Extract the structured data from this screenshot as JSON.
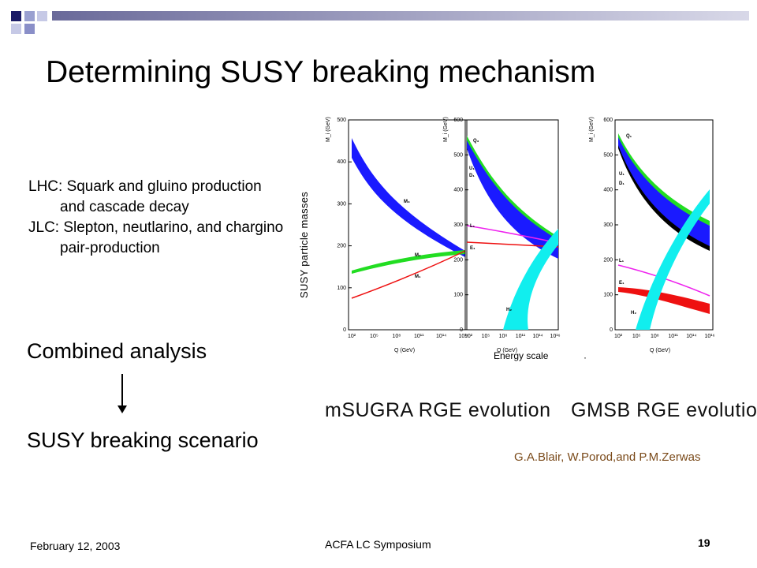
{
  "slide": {
    "title": "Determining SUSY breaking mechanism",
    "bullets": [
      "LHC:  Squark and gluino production and cascade decay",
      "JLC:  Slepton, neutlarino, and chargino pair-production"
    ],
    "combined": "Combined analysis",
    "scenario": "SUSY breaking scenario",
    "figure": {
      "ylabel": "SUSY particle masses",
      "xlabel": "Energy scale",
      "xlabel_mark": "·",
      "caption_left": "mSUGRA RGE evolution",
      "caption_right": "GMSB RGE evolution",
      "credit": "G.A.Blair, W.Porod,and P.M.Zerwas",
      "panel_axis_label": "M_i (GeV)",
      "panel_xaxis_label": "Q (GeV)",
      "panel1_yticks": [
        "0",
        "100",
        "200",
        "300",
        "400",
        "500"
      ],
      "panel23_yticks": [
        "0",
        "100",
        "200",
        "300",
        "400",
        "500",
        "600"
      ],
      "xticks": [
        "10²",
        "10⁵",
        "10⁸",
        "10¹¹",
        "10¹⁴",
        "10¹⁶"
      ],
      "panel1_curve_labels": [
        "M₃",
        "M₂",
        "M₁"
      ],
      "panel2_curve_labels": [
        "Q₃",
        "U₁",
        "D₁",
        "L₁",
        "E₁",
        "H₂"
      ],
      "panel3_curve_labels": [
        "Q₁",
        "U₁",
        "D₁",
        "L₁",
        "E₁",
        "H₂"
      ],
      "colors": {
        "blue": "#1a1aff",
        "green": "#22dd22",
        "red": "#ee1111",
        "magenta": "#ee22ee",
        "cyan": "#11eeee",
        "black": "#000000"
      }
    }
  },
  "footer": {
    "date": "February 12, 2003",
    "center": "ACFA LC Symposium",
    "page": "19"
  }
}
